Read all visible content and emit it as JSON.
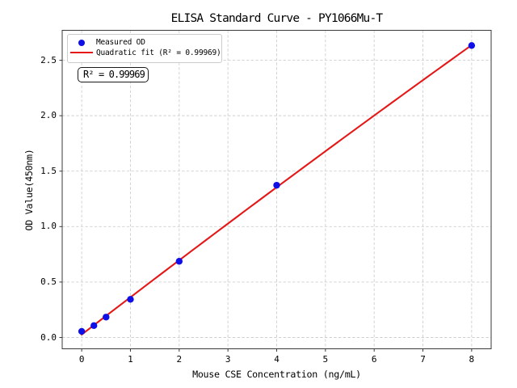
{
  "figure": {
    "background": "#ffffff"
  },
  "chart_data": {
    "type": "scatter",
    "title": "ELISA Standard Curve - PY1066Mu-T",
    "xlabel": "Mouse CSE Concentration (ng/mL)",
    "ylabel": "OD Value(450nm)",
    "series": [
      {
        "name": "Measured OD",
        "type": "scatter",
        "marker": "circle",
        "x": [
          0,
          0.25,
          0.5,
          1,
          2,
          4,
          8
        ],
        "y": [
          0.055,
          0.107,
          0.184,
          0.344,
          0.687,
          1.373,
          2.633
        ]
      },
      {
        "name": "Quadratic fit (R² = 0.99969)",
        "type": "line",
        "fit": "quadratic",
        "fit_of_series": 0,
        "x_range": [
          0,
          8
        ],
        "r_squared": 0.99969
      }
    ],
    "xlim": [
      -0.4,
      8.4
    ],
    "ylim": [
      -0.102,
      2.77
    ],
    "xticks": [
      0,
      1,
      2,
      3,
      4,
      5,
      6,
      7,
      8
    ],
    "xtick_labels": [
      "0",
      "1",
      "2",
      "3",
      "4",
      "5",
      "6",
      "7",
      "8"
    ],
    "yticks": [
      0,
      0.5,
      1,
      1.5,
      2,
      2.5
    ],
    "ytick_labels": [
      "0.0",
      "0.5",
      "1.0",
      "1.5",
      "2.0",
      "2.5"
    ],
    "grid": true,
    "grid_style": "dashed",
    "legend": {
      "position": "upper left",
      "entries": [
        {
          "marker": "dot",
          "label": "Measured OD"
        },
        {
          "marker": "line",
          "label": "Quadratic fit (R² = 0.99969)"
        }
      ]
    },
    "annotation": {
      "text": "R² = 0.99969"
    },
    "colors": {
      "marker": "#0f0fe8",
      "fit_line": "#e51717",
      "grid": "#cfcfcf",
      "spine": "#3a3a3a",
      "text": "#000000",
      "legend_border": "#cccccc"
    }
  }
}
